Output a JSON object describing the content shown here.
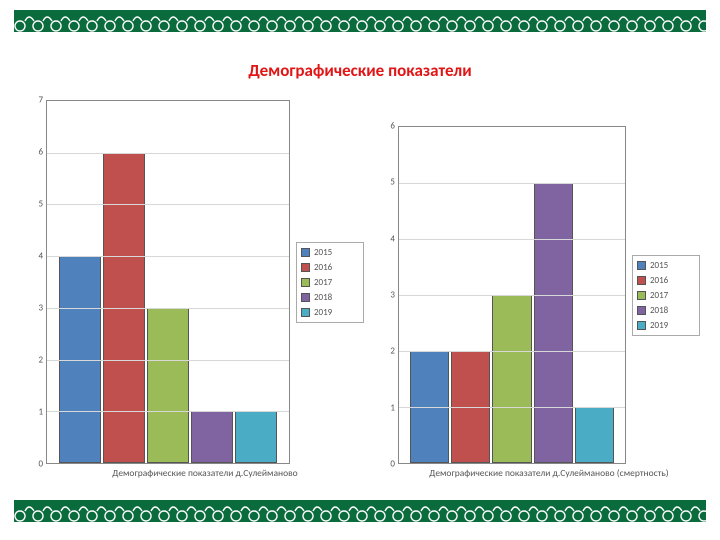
{
  "title": "Демографические показатели",
  "ornament_color": "#0a6b3d",
  "series_colors": {
    "2015": "#4f81bd",
    "2016": "#c0504d",
    "2017": "#9bbb59",
    "2018": "#8064a2",
    "2019": "#4bacc6"
  },
  "legend_labels": [
    "2015",
    "2016",
    "2017",
    "2018",
    "2019"
  ],
  "chart_left": {
    "type": "bar",
    "x_label": "Демографические показатели д.Сулейманово",
    "ymax": 7,
    "ytick_step": 1,
    "values": [
      4,
      6,
      3,
      1,
      1
    ],
    "grid_color": "#d8d8d8",
    "border_color": "#888888",
    "tick_font_size": 9
  },
  "chart_right": {
    "type": "bar",
    "x_label": "Демографические показатели д.Сулейманово (смертность)",
    "ymax": 6,
    "ytick_step": 1,
    "values": [
      2,
      2,
      3,
      5,
      1
    ],
    "grid_color": "#d8d8d8",
    "border_color": "#888888",
    "tick_font_size": 9
  }
}
